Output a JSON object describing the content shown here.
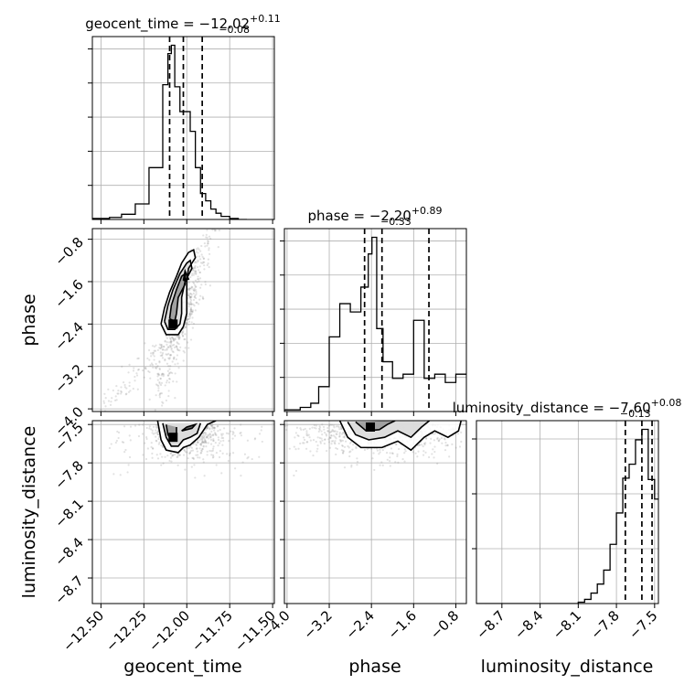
{
  "chart_data": {
    "type": "corner",
    "parameters": [
      "geocent_time",
      "phase",
      "luminosity_distance"
    ],
    "titles": [
      {
        "param": "geocent_time",
        "text": "geocent_time = −12.02",
        "sup": "+0.11",
        "sub": "−0.08"
      },
      {
        "param": "phase",
        "text": "phase = −2.20",
        "sup": "+0.89",
        "sub": "−0.33"
      },
      {
        "param": "luminosity_distance",
        "text": "luminosity_distance = −7.60",
        "sup": "+0.08",
        "sub": "−0.13"
      }
    ],
    "axes": {
      "geocent_time": {
        "range": [
          -12.55,
          -11.49
        ],
        "ticks": [
          -12.5,
          -12.25,
          -12.0,
          -11.75,
          -11.5
        ],
        "tick_labels": [
          "−12.50",
          "−12.25",
          "−12.00",
          "−11.75",
          "−11.50"
        ]
      },
      "phase": {
        "range": [
          -4.05,
          -0.6
        ],
        "ticks": [
          -4.0,
          -3.2,
          -2.4,
          -1.6,
          -0.8
        ],
        "tick_labels": [
          "−4.0",
          "−3.2",
          "−2.4",
          "−1.6",
          "−0.8"
        ]
      },
      "luminosity_distance": {
        "range": [
          -8.9,
          -7.47
        ],
        "ticks": [
          -8.7,
          -8.4,
          -8.1,
          -7.8,
          -7.5
        ],
        "tick_labels": [
          "−8.7",
          "−8.4",
          "−8.1",
          "−7.8",
          "−7.5"
        ]
      }
    },
    "histograms": [
      {
        "param": "geocent_time",
        "edges": [
          -12.55,
          -12.45,
          -12.38,
          -12.3,
          -12.22,
          -12.14,
          -12.11,
          -12.09,
          -12.07,
          -12.04,
          -12.01,
          -11.98,
          -11.95,
          -11.92,
          -11.89,
          -11.86,
          -11.83,
          -11.8,
          -11.75,
          -11.7,
          -11.65
        ],
        "counts": [
          1,
          2,
          5,
          15,
          50,
          130,
          160,
          168,
          128,
          104,
          104,
          85,
          50,
          25,
          18,
          10,
          6,
          3,
          1,
          0
        ],
        "quantiles": [
          -12.1,
          -12.02,
          -11.91
        ]
      },
      {
        "param": "phase",
        "edges": [
          -4.05,
          -3.75,
          -3.55,
          -3.4,
          -3.2,
          -3.0,
          -2.8,
          -2.6,
          -2.46,
          -2.39,
          -2.3,
          -2.18,
          -2.0,
          -1.8,
          -1.6,
          -1.4,
          -1.2,
          -1.0,
          -0.8,
          -0.6
        ],
        "counts": [
          2,
          5,
          10,
          30,
          90,
          130,
          120,
          150,
          190,
          210,
          100,
          60,
          40,
          45,
          110,
          40,
          45,
          35,
          45
        ],
        "quantiles": [
          -2.53,
          -2.2,
          -1.31
        ]
      },
      {
        "param": "luminosity_distance",
        "edges": [
          -8.9,
          -8.1,
          -8.05,
          -8.0,
          -7.95,
          -7.9,
          -7.85,
          -7.8,
          -7.75,
          -7.7,
          -7.65,
          -7.6,
          -7.55,
          -7.5,
          -7.47
        ],
        "counts": [
          0,
          2,
          6,
          15,
          28,
          48,
          85,
          130,
          180,
          200,
          235,
          250,
          178,
          150
        ],
        "quantiles": [
          -7.73,
          -7.6,
          -7.52
        ]
      }
    ],
    "contours_2d": [
      {
        "x": "geocent_time",
        "y": "phase",
        "levels": [
          [
            [
              -12.15,
              -2.4
            ],
            [
              -12.13,
              -2.1
            ],
            [
              -12.1,
              -1.8
            ],
            [
              -12.06,
              -1.5
            ],
            [
              -12.03,
              -1.25
            ],
            [
              -11.99,
              -1.05
            ],
            [
              -11.96,
              -1.0
            ],
            [
              -11.95,
              -1.15
            ],
            [
              -11.99,
              -1.35
            ],
            [
              -12.0,
              -1.6
            ],
            [
              -12.0,
              -1.9
            ],
            [
              -12.0,
              -2.2
            ],
            [
              -12.02,
              -2.45
            ],
            [
              -12.05,
              -2.6
            ],
            [
              -12.12,
              -2.6
            ],
            [
              -12.15,
              -2.4
            ]
          ],
          [
            [
              -12.13,
              -2.35
            ],
            [
              -12.11,
              -2.05
            ],
            [
              -12.08,
              -1.75
            ],
            [
              -12.04,
              -1.45
            ],
            [
              -12.0,
              -1.25
            ],
            [
              -11.98,
              -1.2
            ],
            [
              -11.97,
              -1.35
            ],
            [
              -12.01,
              -1.6
            ],
            [
              -12.03,
              -1.9
            ],
            [
              -12.03,
              -2.2
            ],
            [
              -12.04,
              -2.4
            ],
            [
              -12.07,
              -2.5
            ],
            [
              -12.11,
              -2.5
            ],
            [
              -12.13,
              -2.35
            ]
          ],
          [
            [
              -12.1,
              -2.3
            ],
            [
              -12.09,
              -2.05
            ],
            [
              -12.06,
              -1.75
            ],
            [
              -12.03,
              -1.5
            ],
            [
              -12.01,
              -1.45
            ],
            [
              -12.01,
              -1.65
            ],
            [
              -12.05,
              -1.9
            ],
            [
              -12.06,
              -2.2
            ],
            [
              -12.07,
              -2.35
            ],
            [
              -12.1,
              -2.3
            ]
          ],
          [
            [
              -12.02,
              -1.58
            ],
            [
              -12.01,
              -1.4
            ],
            [
              -11.99,
              -1.55
            ],
            [
              -12.02,
              -1.58
            ]
          ]
        ],
        "peak": [
          -12.08,
          -2.4
        ]
      },
      {
        "x": "geocent_time",
        "y": "luminosity_distance",
        "levels": [
          [
            [
              -12.17,
              -7.47
            ],
            [
              -12.15,
              -7.62
            ],
            [
              -12.12,
              -7.7
            ],
            [
              -12.05,
              -7.72
            ],
            [
              -12.02,
              -7.68
            ],
            [
              -11.98,
              -7.66
            ],
            [
              -11.93,
              -7.6
            ],
            [
              -11.88,
              -7.5
            ],
            [
              -11.83,
              -7.47
            ]
          ],
          [
            [
              -12.14,
              -7.49
            ],
            [
              -12.12,
              -7.6
            ],
            [
              -12.09,
              -7.67
            ],
            [
              -12.05,
              -7.67
            ],
            [
              -12.02,
              -7.62
            ],
            [
              -11.98,
              -7.6
            ],
            [
              -11.94,
              -7.57
            ],
            [
              -11.92,
              -7.49
            ]
          ],
          [
            [
              -12.12,
              -7.5
            ],
            [
              -12.11,
              -7.58
            ],
            [
              -12.09,
              -7.62
            ],
            [
              -12.06,
              -7.6
            ],
            [
              -12.06,
              -7.52
            ]
          ],
          [
            [
              -12.03,
              -7.55
            ],
            [
              -11.97,
              -7.53
            ],
            [
              -11.95,
              -7.5
            ],
            [
              -12.0,
              -7.52
            ],
            [
              -12.03,
              -7.55
            ]
          ]
        ],
        "peak": [
          -12.08,
          -7.6
        ]
      },
      {
        "x": "phase",
        "y": "luminosity_distance",
        "levels": [
          [
            [
              -3.0,
              -7.47
            ],
            [
              -2.85,
              -7.6
            ],
            [
              -2.6,
              -7.68
            ],
            [
              -2.2,
              -7.68
            ],
            [
              -1.9,
              -7.63
            ],
            [
              -1.65,
              -7.7
            ],
            [
              -1.4,
              -7.6
            ],
            [
              -1.2,
              -7.55
            ],
            [
              -0.95,
              -7.6
            ],
            [
              -0.75,
              -7.55
            ],
            [
              -0.7,
              -7.47
            ]
          ],
          [
            [
              -2.85,
              -7.48
            ],
            [
              -2.7,
              -7.58
            ],
            [
              -2.45,
              -7.62
            ],
            [
              -2.15,
              -7.6
            ],
            [
              -1.9,
              -7.55
            ],
            [
              -1.65,
              -7.6
            ],
            [
              -1.45,
              -7.52
            ],
            [
              -1.3,
              -7.47
            ]
          ],
          [
            [
              -2.7,
              -7.48
            ],
            [
              -2.5,
              -7.55
            ],
            [
              -2.25,
              -7.54
            ],
            [
              -2.1,
              -7.5
            ],
            [
              -1.95,
              -7.47
            ]
          ]
        ],
        "peak": [
          -2.42,
          -7.52
        ]
      }
    ],
    "grid": true,
    "scatter": "light grey samples behind contours"
  }
}
